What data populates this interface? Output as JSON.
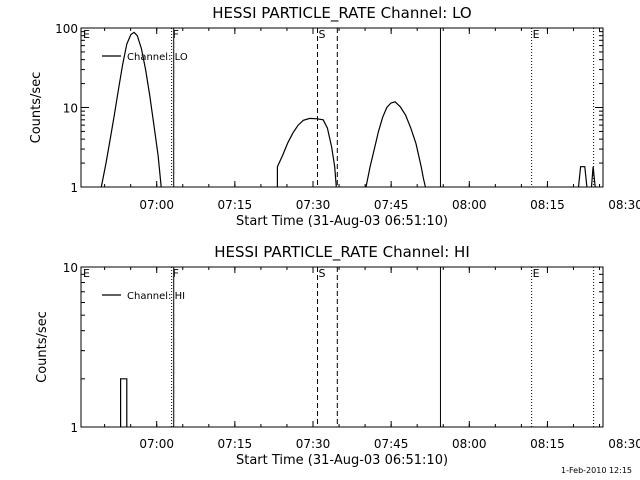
{
  "footer": {
    "stamp": "1-Feb-2010 12:15"
  },
  "chart_data": [
    {
      "type": "line",
      "title": "HESSI PARTICLE_RATE Channel: LO",
      "xlabel": "Start Time (31-Aug-03 06:51:10)",
      "ylabel": "Counts/sec",
      "y_scale": "log",
      "ylim": [
        1,
        100
      ],
      "xlim_minutes": [
        -5.7,
        94.5
      ],
      "x_ticks": [
        {
          "m": 8.8333,
          "label": "07:00"
        },
        {
          "m": 23.8333,
          "label": "07:15"
        },
        {
          "m": 38.8333,
          "label": "07:30"
        },
        {
          "m": 53.8333,
          "label": "07:45"
        },
        {
          "m": 68.8333,
          "label": "08:00"
        },
        {
          "m": 83.8333,
          "label": "08:15"
        },
        {
          "m": 98.8333,
          "label": "08:30"
        }
      ],
      "y_ticks": [
        {
          "v": 1,
          "label": "1"
        },
        {
          "v": 10,
          "label": "10"
        },
        {
          "v": 100,
          "label": "100"
        }
      ],
      "events": [
        {
          "m": 11.7,
          "style": "dotted",
          "label": "F"
        },
        {
          "m": 12.1,
          "style": "solid",
          "label": ""
        },
        {
          "m": 39.7,
          "style": "dashed",
          "label": "S"
        },
        {
          "m": 43.5,
          "style": "dashed",
          "label": ""
        },
        {
          "m": 63.3,
          "style": "solid",
          "label": ""
        },
        {
          "m": 80.8,
          "style": "dotted",
          "label": "E"
        },
        {
          "m": 92.7,
          "style": "dotted",
          "label": ""
        }
      ],
      "top_left_marker": "E",
      "legend": {
        "label": "Channel: LO",
        "position": "top-left"
      },
      "series": [
        {
          "segments": [
            [
              [
                -1.8,
                1
              ],
              [
                -0.9,
                2
              ],
              [
                -0.1,
                4
              ],
              [
                0.7,
                8
              ],
              [
                1.5,
                17
              ],
              [
                2.3,
                35
              ],
              [
                3.1,
                63
              ],
              [
                3.9,
                83
              ],
              [
                4.5,
                88
              ],
              [
                5.1,
                80
              ],
              [
                5.9,
                55
              ],
              [
                6.7,
                30
              ],
              [
                7.5,
                14
              ],
              [
                8.3,
                6
              ],
              [
                9.1,
                2.5
              ],
              [
                9.7,
                1
              ]
            ],
            [
              [
                32.0,
                1
              ],
              [
                32.0,
                1.8
              ],
              [
                33.0,
                2.5
              ],
              [
                34.0,
                3.6
              ],
              [
                35.0,
                4.8
              ],
              [
                36.0,
                6
              ],
              [
                37.0,
                6.9
              ],
              [
                38.2,
                7.3
              ],
              [
                39.6,
                7.2
              ],
              [
                40.8,
                7.0
              ],
              [
                41.6,
                5.5
              ],
              [
                42.4,
                3.2
              ],
              [
                43.0,
                1.8
              ],
              [
                43.3,
                1
              ]
            ],
            [
              [
                49.0,
                1
              ],
              [
                49.8,
                1.8
              ],
              [
                50.6,
                3
              ],
              [
                51.4,
                5
              ],
              [
                52.2,
                7.5
              ],
              [
                53.0,
                10
              ],
              [
                53.8,
                11.4
              ],
              [
                54.6,
                11.8
              ],
              [
                55.6,
                10.2
              ],
              [
                56.6,
                8.0
              ],
              [
                57.6,
                5.5
              ],
              [
                58.6,
                3.5
              ],
              [
                59.6,
                1.8
              ],
              [
                60.0,
                1.3
              ],
              [
                60.4,
                1
              ]
            ],
            [
              [
                89.8,
                1
              ],
              [
                90.2,
                1.8
              ],
              [
                91.0,
                1.8
              ],
              [
                91.4,
                1
              ]
            ],
            [
              [
                92.3,
                1
              ],
              [
                92.6,
                1.8
              ],
              [
                93.0,
                1
              ]
            ]
          ]
        }
      ]
    },
    {
      "type": "line",
      "title": "HESSI PARTICLE_RATE Channel: HI",
      "xlabel": "Start Time (31-Aug-03 06:51:10)",
      "ylabel": "Counts/sec",
      "y_scale": "log",
      "ylim": [
        1,
        10
      ],
      "xlim_minutes": [
        -5.7,
        94.5
      ],
      "x_ticks": [
        {
          "m": 8.8333,
          "label": "07:00"
        },
        {
          "m": 23.8333,
          "label": "07:15"
        },
        {
          "m": 38.8333,
          "label": "07:30"
        },
        {
          "m": 53.8333,
          "label": "07:45"
        },
        {
          "m": 68.8333,
          "label": "08:00"
        },
        {
          "m": 83.8333,
          "label": "08:15"
        },
        {
          "m": 98.8333,
          "label": "08:30"
        }
      ],
      "y_ticks": [
        {
          "v": 1,
          "label": "1"
        },
        {
          "v": 10,
          "label": "10"
        }
      ],
      "events": [
        {
          "m": 11.7,
          "style": "dotted",
          "label": "F"
        },
        {
          "m": 12.1,
          "style": "solid",
          "label": ""
        },
        {
          "m": 39.7,
          "style": "dashed",
          "label": "S"
        },
        {
          "m": 43.5,
          "style": "dashed",
          "label": ""
        },
        {
          "m": 63.3,
          "style": "solid",
          "label": ""
        },
        {
          "m": 80.8,
          "style": "dotted",
          "label": "E"
        },
        {
          "m": 92.7,
          "style": "dotted",
          "label": ""
        }
      ],
      "top_left_marker": "E",
      "legend": {
        "label": "Channel: HI",
        "position": "top-left"
      },
      "series": [
        {
          "segments": [
            [
              [
                1.9,
                1
              ],
              [
                1.9,
                2
              ],
              [
                3.1,
                2
              ],
              [
                3.1,
                1
              ]
            ]
          ]
        }
      ]
    }
  ]
}
